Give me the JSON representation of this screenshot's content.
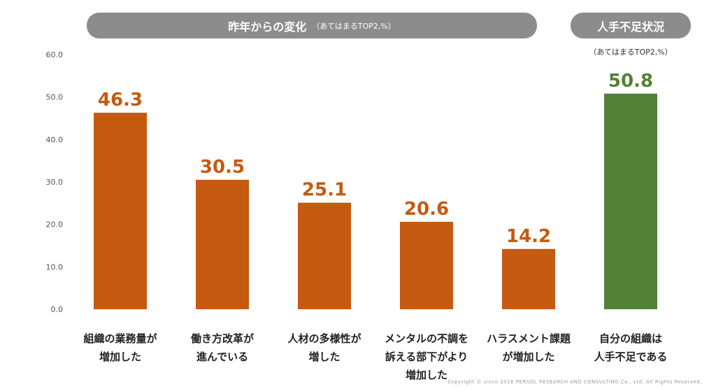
{
  "header": {
    "title": "昨年からの変化",
    "subtitle": "（あてはまるTOP2,%）",
    "right_title": "人手不足状況",
    "right_note": "（あてはまるTOP2,%）"
  },
  "footer": {
    "copyright": "Copyright © since 2016 PERSOL RESEARCH AND CONSULTING Co., Ltd. All Rights Reserved."
  },
  "colors": {
    "orange": "#c55a11",
    "green": "#538135",
    "pill": "#8c8c8c"
  },
  "chart_data": {
    "type": "bar",
    "categories": [
      "組織の業務量が\n増加した",
      "働き方改革が\n進んでいる",
      "人材の多様性が\n増した",
      "メンタルの不調を\n訴える部下がより\n増加した",
      "ハラスメント課題\nが増加した",
      "自分の組織は\n人手不足である"
    ],
    "values": [
      46.3,
      30.5,
      25.1,
      20.6,
      14.2,
      50.8
    ],
    "value_labels": [
      "46.3",
      "30.5",
      "25.1",
      "20.6",
      "14.2",
      "50.8"
    ],
    "bar_colors": [
      "#c55a11",
      "#c55a11",
      "#c55a11",
      "#c55a11",
      "#c55a11",
      "#538135"
    ],
    "ylim": [
      0,
      60
    ],
    "yticks": [
      "0.0",
      "10.0",
      "20.0",
      "30.0",
      "40.0",
      "50.0",
      "60.0"
    ],
    "grid": false
  }
}
